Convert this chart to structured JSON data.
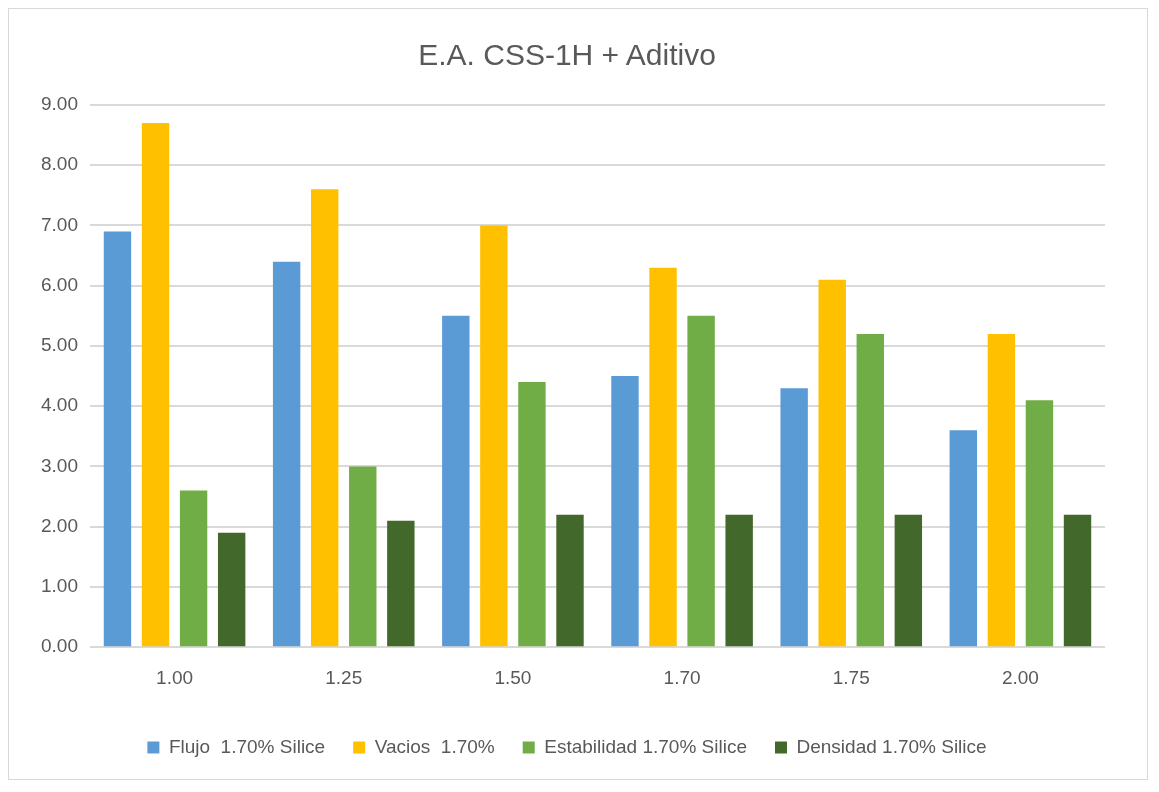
{
  "chart_data": {
    "type": "bar",
    "title": "E.A. CSS-1H + Aditivo",
    "categories": [
      "1.00",
      "1.25",
      "1.50",
      "1.70",
      "1.75",
      "2.00"
    ],
    "series": [
      {
        "name": "Flujo  1.70% Silice",
        "color": "#5b9bd5",
        "values": [
          6.9,
          6.4,
          5.5,
          4.5,
          4.3,
          3.6
        ]
      },
      {
        "name": "Vacios  1.70%",
        "color": "#ffc000",
        "values": [
          8.7,
          7.6,
          7.0,
          6.3,
          6.1,
          5.2
        ]
      },
      {
        "name": "Estabilidad 1.70% Silice",
        "color": "#70ad47",
        "values": [
          2.6,
          3.0,
          4.4,
          5.5,
          5.2,
          4.1
        ]
      },
      {
        "name": "Densidad 1.70% Silice",
        "color": "#43682b",
        "values": [
          1.9,
          2.1,
          2.2,
          2.2,
          2.2,
          2.2
        ]
      }
    ],
    "ylim": [
      0,
      9
    ],
    "yticks": [
      {
        "value": 0,
        "label": "0.00"
      },
      {
        "value": 1,
        "label": "1.00"
      },
      {
        "value": 2,
        "label": "2.00"
      },
      {
        "value": 3,
        "label": "3.00"
      },
      {
        "value": 4,
        "label": "4.00"
      },
      {
        "value": 5,
        "label": "5.00"
      },
      {
        "value": 6,
        "label": "6.00"
      },
      {
        "value": 7,
        "label": "7.00"
      },
      {
        "value": 8,
        "label": "8.00"
      },
      {
        "value": 9,
        "label": "9.00"
      }
    ],
    "grid": "y",
    "legend": "bottom"
  }
}
